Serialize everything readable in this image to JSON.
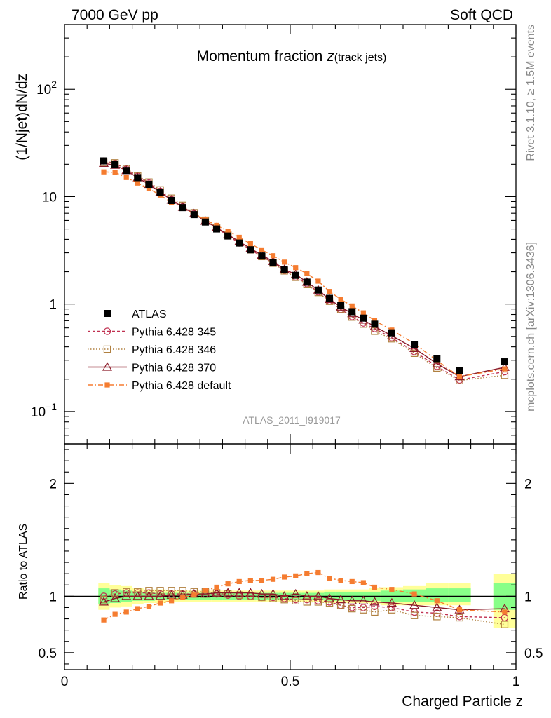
{
  "header": {
    "energy_label": "7000 GeV pp",
    "process_label": "Soft QCD"
  },
  "side": {
    "rivet_label": "Rivet 3.1.10, ≥ 1.5M events",
    "source_label": "mcplots.cern.ch [arXiv:1306.3436]"
  },
  "chart_data": {
    "type": "scatter",
    "title": "Momentum fraction",
    "title_symbol": "z",
    "title_sub": "(track jets)",
    "analysis_label": "ATLAS_2011_I919017",
    "xlabel": "Charged Particle z",
    "ylabel": "(1/Njet)dN/dz",
    "ratio_ylabel": "Ratio to ATLAS",
    "xlim": [
      0,
      1
    ],
    "ylim_main": [
      0.05,
      400
    ],
    "ylim_ratio": [
      0.35,
      2.35
    ],
    "yscale_main": "log",
    "x_ticks": [
      "0",
      "0.5",
      "1"
    ],
    "x_tick_values": [
      0,
      0.5,
      1
    ],
    "main_y_ticks": [
      {
        "base": "10",
        "exp": "−1",
        "value": 0.1
      },
      {
        "base": "1",
        "exp": "",
        "value": 1
      },
      {
        "base": "10",
        "exp": "",
        "value": 10
      },
      {
        "base": "10",
        "exp": "2",
        "value": 100
      }
    ],
    "ratio_y_ticks": [
      {
        "label": "0.5",
        "value": 0.5
      },
      {
        "label": "1",
        "value": 1
      },
      {
        "label": "2",
        "value": 2
      }
    ],
    "legend_position": "lower-left",
    "x": [
      0.087,
      0.112,
      0.137,
      0.162,
      0.187,
      0.212,
      0.237,
      0.262,
      0.287,
      0.312,
      0.337,
      0.362,
      0.387,
      0.412,
      0.437,
      0.462,
      0.487,
      0.512,
      0.537,
      0.562,
      0.587,
      0.612,
      0.637,
      0.662,
      0.687,
      0.725,
      0.775,
      0.825,
      0.875,
      0.975
    ],
    "data": {
      "name": "ATLAS",
      "values": [
        21.5,
        20.0,
        17.5,
        15.0,
        13.0,
        11.0,
        9.2,
        7.9,
        6.8,
        5.8,
        5.0,
        4.3,
        3.7,
        3.2,
        2.8,
        2.45,
        2.1,
        1.85,
        1.6,
        1.35,
        1.13,
        0.97,
        0.85,
        0.74,
        0.65,
        0.54,
        0.42,
        0.31,
        0.24,
        0.29
      ],
      "color": "#000000"
    },
    "bands": {
      "x_edges": [
        0.075,
        0.1,
        0.125,
        0.15,
        0.175,
        0.2,
        0.225,
        0.25,
        0.275,
        0.3,
        0.325,
        0.35,
        0.375,
        0.4,
        0.425,
        0.45,
        0.475,
        0.5,
        0.525,
        0.55,
        0.575,
        0.6,
        0.625,
        0.65,
        0.675,
        0.7,
        0.75,
        0.8,
        0.85,
        0.9,
        0.95,
        1.0
      ],
      "green_lo": [
        0.93,
        0.94,
        0.95,
        0.96,
        0.96,
        0.97,
        0.97,
        0.97,
        0.97,
        0.97,
        0.97,
        0.97,
        0.97,
        0.97,
        0.97,
        0.97,
        0.97,
        0.97,
        0.97,
        0.97,
        0.96,
        0.96,
        0.96,
        0.96,
        0.96,
        0.95,
        0.95,
        0.95,
        0.95,
        null,
        0.88
      ],
      "green_hi": [
        1.07,
        1.06,
        1.05,
        1.04,
        1.04,
        1.03,
        1.03,
        1.03,
        1.03,
        1.03,
        1.03,
        1.03,
        1.03,
        1.03,
        1.03,
        1.03,
        1.03,
        1.03,
        1.03,
        1.03,
        1.04,
        1.04,
        1.04,
        1.04,
        1.04,
        1.05,
        1.06,
        1.07,
        1.07,
        null,
        1.12
      ],
      "yellow_lo": [
        0.88,
        0.9,
        0.91,
        0.93,
        0.94,
        0.94,
        0.95,
        0.95,
        0.95,
        0.95,
        0.95,
        0.95,
        0.95,
        0.95,
        0.95,
        0.95,
        0.95,
        0.95,
        0.95,
        0.95,
        0.94,
        0.94,
        0.94,
        0.94,
        0.93,
        0.92,
        0.92,
        0.92,
        0.92,
        null,
        0.72
      ],
      "yellow_hi": [
        1.12,
        1.1,
        1.09,
        1.07,
        1.06,
        1.06,
        1.05,
        1.05,
        1.05,
        1.05,
        1.05,
        1.05,
        1.05,
        1.05,
        1.05,
        1.05,
        1.05,
        1.05,
        1.05,
        1.05,
        1.06,
        1.06,
        1.06,
        1.06,
        1.07,
        1.08,
        1.09,
        1.12,
        1.12,
        null,
        1.2
      ]
    },
    "series": [
      {
        "name": "Pythia 6.428 345",
        "color": "#c03050",
        "marker": "circle",
        "dash": "4,3",
        "ratio": [
          1.0,
          1.02,
          1.03,
          1.03,
          1.03,
          1.02,
          1.02,
          1.02,
          1.02,
          1.02,
          1.02,
          1.01,
          1.0,
          1.0,
          0.99,
          0.99,
          0.98,
          0.97,
          0.97,
          0.96,
          0.95,
          0.92,
          0.9,
          0.9,
          0.91,
          0.9,
          0.86,
          0.85,
          0.82,
          0.81
        ]
      },
      {
        "name": "Pythia 6.428 346",
        "color": "#b08040",
        "marker": "square",
        "dash": "1.5,2.5",
        "ratio": [
          0.97,
          1.03,
          1.04,
          1.04,
          1.05,
          1.05,
          1.05,
          1.05,
          1.04,
          1.04,
          1.03,
          1.02,
          1.01,
          1.0,
          0.99,
          0.98,
          0.97,
          0.96,
          0.95,
          0.95,
          0.94,
          0.92,
          0.89,
          0.88,
          0.86,
          0.88,
          0.83,
          0.82,
          0.81,
          0.75
        ]
      },
      {
        "name": "Pythia 6.428 370",
        "color": "#8b1a28",
        "marker": "triangle",
        "dash": "",
        "ratio": [
          0.95,
          0.98,
          1.0,
          1.0,
          1.0,
          1.0,
          1.01,
          1.01,
          1.02,
          1.02,
          1.03,
          1.03,
          1.03,
          1.03,
          1.02,
          1.02,
          1.0,
          1.02,
          1.0,
          1.0,
          0.98,
          0.97,
          0.96,
          0.96,
          0.95,
          0.94,
          0.92,
          0.9,
          0.88,
          0.89
        ]
      },
      {
        "name": "Pythia 6.428 default",
        "color": "#f57c30",
        "marker": "filled-square",
        "dash": "7,3,2,3",
        "ratio": [
          0.79,
          0.84,
          0.86,
          0.89,
          0.91,
          0.94,
          0.96,
          0.99,
          1.01,
          1.05,
          1.08,
          1.11,
          1.13,
          1.14,
          1.14,
          1.15,
          1.17,
          1.18,
          1.2,
          1.21,
          1.16,
          1.14,
          1.13,
          1.12,
          1.08,
          1.06,
          1.02,
          0.96,
          0.88,
          0.86
        ]
      }
    ]
  }
}
